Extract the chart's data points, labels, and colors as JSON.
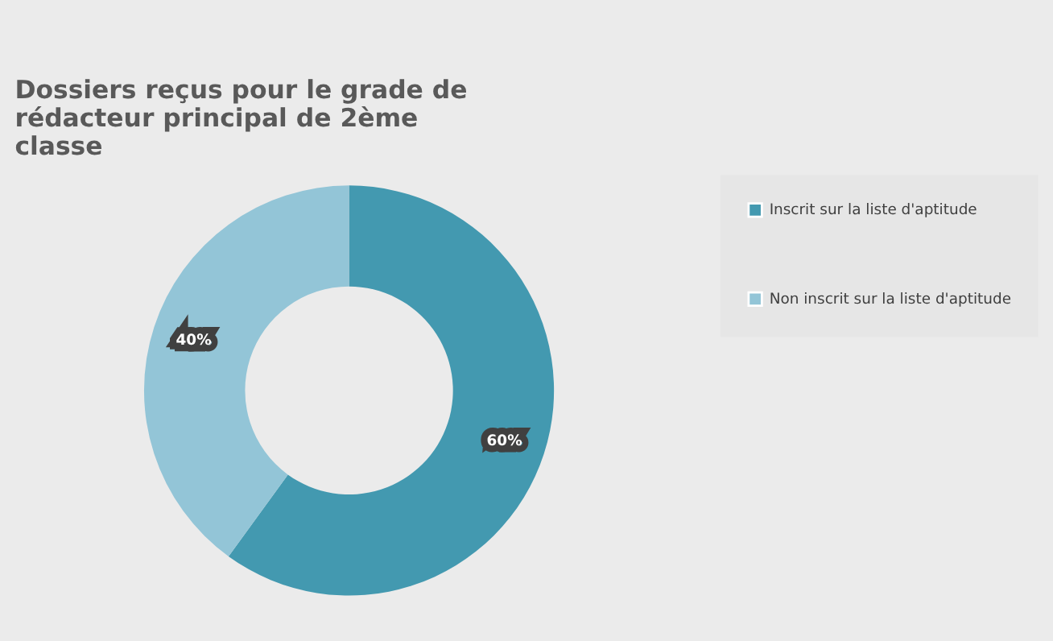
{
  "chart_data": {
    "type": "donut",
    "title": "Dossiers reçus pour le grade de rédacteur principal de 2ème classe",
    "categories": [
      "Inscrit sur la liste d'aptitude",
      "Non inscrit sur la liste d'aptitude"
    ],
    "values": [
      60,
      40
    ],
    "colors": [
      "#4399b0",
      "#93c5d7"
    ],
    "value_labels": [
      "60%",
      "40%"
    ],
    "legend": "right"
  }
}
